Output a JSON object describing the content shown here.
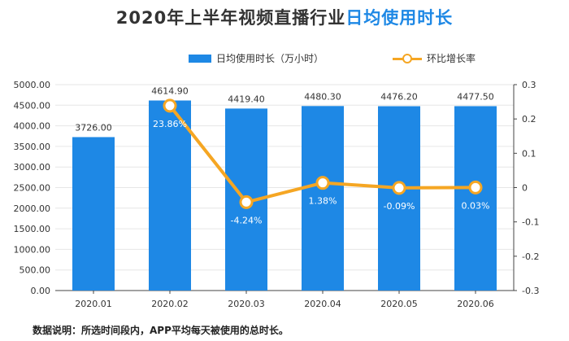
{
  "title": {
    "part1": "2020年上半年视频直播行业",
    "part2": "日均使用时长"
  },
  "footnote": "数据说明：所选时间段内，APP平均每天被使用的总时长。",
  "colors": {
    "bar": "#1e88e5",
    "line": "#f5a623",
    "title_accent": "#1e88e5",
    "grid": "#e6e6e6"
  },
  "legend": {
    "bar_label": "日均使用时长（万小时）",
    "line_label": "环比增长率"
  },
  "chart_data": {
    "type": "bar",
    "categories": [
      "2020.01",
      "2020.02",
      "2020.03",
      "2020.04",
      "2020.05",
      "2020.06"
    ],
    "series": [
      {
        "name": "日均使用时长（万小时）",
        "type": "bar",
        "axis": "left",
        "values": [
          3726.0,
          4614.9,
          4419.4,
          4480.3,
          4476.2,
          4477.5
        ],
        "labels": [
          "3726.00",
          "4614.90",
          "4419.40",
          "4480.30",
          "4476.20",
          "4477.50"
        ]
      },
      {
        "name": "环比增长率",
        "type": "line",
        "axis": "right",
        "values": [
          null,
          0.2386,
          -0.0424,
          0.0138,
          -0.0009,
          0.0003
        ],
        "labels": [
          null,
          "23.86%",
          "-4.24%",
          "1.38%",
          "-0.09%",
          "0.03%"
        ]
      }
    ],
    "ylim_left": [
      0,
      5000
    ],
    "yticks_left": [
      "0.00",
      "500.00",
      "1000.00",
      "1500.00",
      "2000.00",
      "2500.00",
      "3000.00",
      "3500.00",
      "4000.00",
      "4500.00",
      "5000.00"
    ],
    "ylim_right": [
      -0.3,
      0.3
    ],
    "yticks_right": [
      "-0.3",
      "-0.2",
      "-0.1",
      "0",
      "0.1",
      "0.2",
      "0.3"
    ],
    "grid": true,
    "legend_position": "top"
  }
}
